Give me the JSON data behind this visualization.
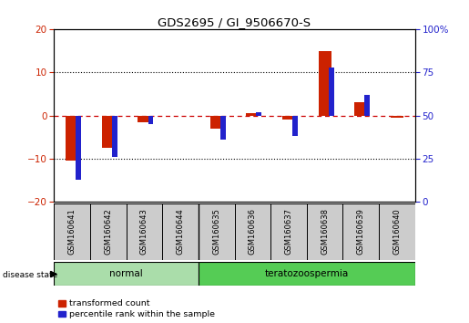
{
  "title": "GDS2695 / GI_9506670-S",
  "categories": [
    "GSM160641",
    "GSM160642",
    "GSM160643",
    "GSM160644",
    "GSM160635",
    "GSM160636",
    "GSM160637",
    "GSM160638",
    "GSM160639",
    "GSM160640"
  ],
  "red_values": [
    -10.5,
    -7.5,
    -1.5,
    0.0,
    -3.0,
    0.5,
    -1.0,
    15.0,
    3.0,
    -0.5
  ],
  "blue_values_pct": [
    13,
    26,
    45,
    50,
    36,
    52,
    38,
    78,
    62,
    50
  ],
  "ylim_left": [
    -20,
    20
  ],
  "ylim_right": [
    0,
    100
  ],
  "yticks_left": [
    -20,
    -10,
    0,
    10,
    20
  ],
  "yticks_right": [
    0,
    25,
    50,
    75,
    100
  ],
  "red_color": "#cc2200",
  "blue_color": "#2222cc",
  "red_dashed_color": "#cc0000",
  "normal_label": "normal",
  "terato_label": "teratozoospermia",
  "disease_state_label": "disease state",
  "legend_red": "transformed count",
  "legend_blue": "percentile rank within the sample",
  "normal_bg": "#aaddaa",
  "terato_bg": "#55cc55",
  "tick_label_bg": "#cccccc"
}
